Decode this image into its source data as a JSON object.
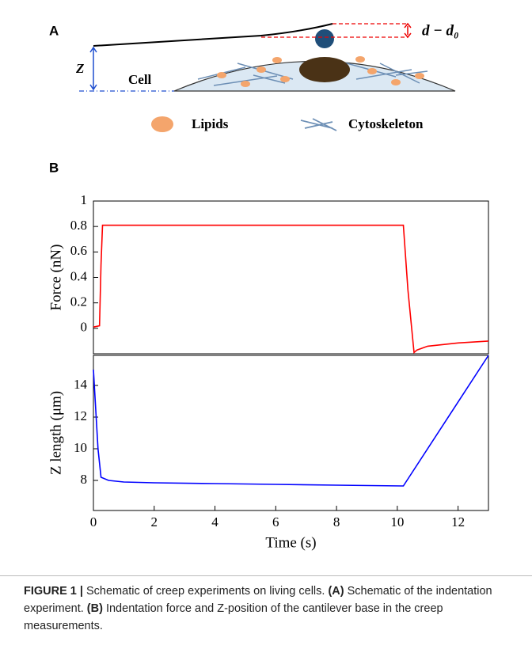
{
  "figure": {
    "panel_a": {
      "label": "A",
      "z_label": "Z",
      "cell_label": "Cell",
      "deflection_label": "d − d₀",
      "legend": [
        "Lipids",
        "Cytoskeleton"
      ]
    },
    "panel_b": {
      "label": "B"
    },
    "caption": {
      "label": "FIGURE 1 |",
      "text_1": "Schematic of creep experiments on living cells.",
      "ref_a": "(A)",
      "text_2": "Schematic of the indentation experiment.",
      "ref_b": "(B)",
      "text_3": "Indentation force and Z-position of the cantilever base in the creep measurements."
    }
  },
  "chart_data": [
    {
      "type": "line",
      "ylabel": "Force (nN)",
      "color": "#ff0000",
      "x": [
        0,
        0.2,
        0.25,
        0.3,
        0.5,
        2,
        4,
        6,
        8,
        10,
        10.2,
        10.35,
        10.55,
        10.65,
        11,
        12,
        13
      ],
      "values": [
        0.01,
        0.02,
        0.5,
        0.81,
        0.81,
        0.81,
        0.81,
        0.81,
        0.81,
        0.81,
        0.81,
        0.3,
        -0.19,
        -0.17,
        -0.14,
        -0.115,
        -0.1
      ],
      "xlim": [
        0,
        13
      ],
      "ylim": [
        -0.2,
        1
      ],
      "yticks": [
        0,
        0.2,
        0.4,
        0.6,
        0.8,
        1
      ]
    },
    {
      "type": "line",
      "xlabel": "Time (s)",
      "ylabel": "Z length (μm)",
      "color": "#0000ff",
      "x": [
        0,
        0.15,
        0.25,
        0.5,
        1,
        2,
        4,
        6,
        8,
        10.2,
        13
      ],
      "values": [
        15,
        10,
        8.2,
        8.0,
        7.9,
        7.85,
        7.8,
        7.75,
        7.7,
        7.65,
        15.9
      ],
      "xlim": [
        0,
        13
      ],
      "ylim": [
        6.1,
        15.9
      ],
      "xticks": [
        0,
        2,
        4,
        6,
        8,
        10,
        12
      ],
      "yticks": [
        8,
        10,
        12,
        14
      ]
    }
  ]
}
